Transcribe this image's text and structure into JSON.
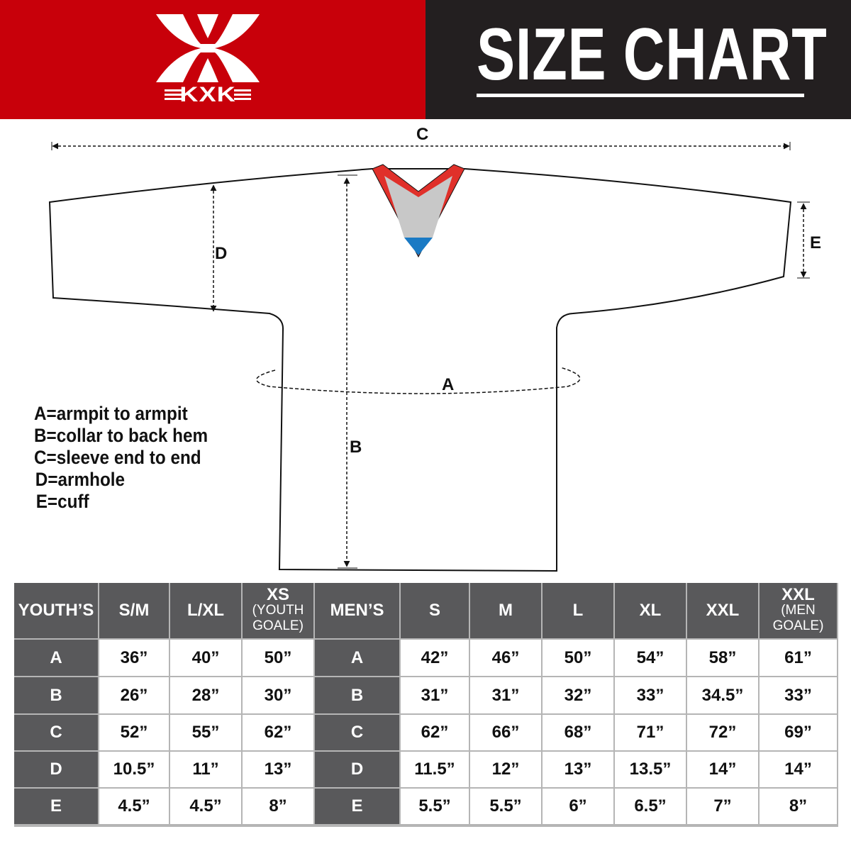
{
  "brand": {
    "name": "KXK",
    "color": "#c8000a"
  },
  "header": {
    "title": "SIZE CHART"
  },
  "diagram": {
    "labels": {
      "a": "A",
      "b": "B",
      "c": "C",
      "d": "D",
      "e": "E"
    },
    "legend": [
      "A=armpit to armpit",
      "B=collar to back hem",
      "C=sleeve end to end",
      "D=armhole",
      "E=cuff"
    ]
  },
  "table": {
    "youth_header": "YOUTH’S",
    "youth_sizes": [
      {
        "main": "S/M"
      },
      {
        "main": "L/XL"
      },
      {
        "main": "XS",
        "sub1": "(YOUTH",
        "sub2": "GOALE)"
      }
    ],
    "men_header": "MEN’S",
    "men_sizes": [
      {
        "main": "S"
      },
      {
        "main": "M"
      },
      {
        "main": "L"
      },
      {
        "main": "XL"
      },
      {
        "main": "XXL"
      },
      {
        "main": "XXL",
        "sub1": "(MEN",
        "sub2": "GOALE)"
      }
    ],
    "rows": [
      {
        "label": "A",
        "youth": [
          "36”",
          "40”",
          "50”"
        ],
        "men": [
          "42”",
          "46”",
          "50”",
          "54”",
          "58”",
          "61”"
        ]
      },
      {
        "label": "B",
        "youth": [
          "26”",
          "28”",
          "30”"
        ],
        "men": [
          "31”",
          "31”",
          "32”",
          "33”",
          "34.5”",
          "33”"
        ]
      },
      {
        "label": "C",
        "youth": [
          "52”",
          "55”",
          "62”"
        ],
        "men": [
          "62”",
          "66”",
          "68”",
          "71”",
          "72”",
          "69”"
        ]
      },
      {
        "label": "D",
        "youth": [
          "10.5”",
          "11”",
          "13”"
        ],
        "men": [
          "11.5”",
          "12”",
          "13”",
          "13.5”",
          "14”",
          "14”"
        ]
      },
      {
        "label": "E",
        "youth": [
          "4.5”",
          "4.5”",
          "8”"
        ],
        "men": [
          "5.5”",
          "5.5”",
          "6”",
          "6.5”",
          "7”",
          "8”"
        ]
      }
    ]
  }
}
